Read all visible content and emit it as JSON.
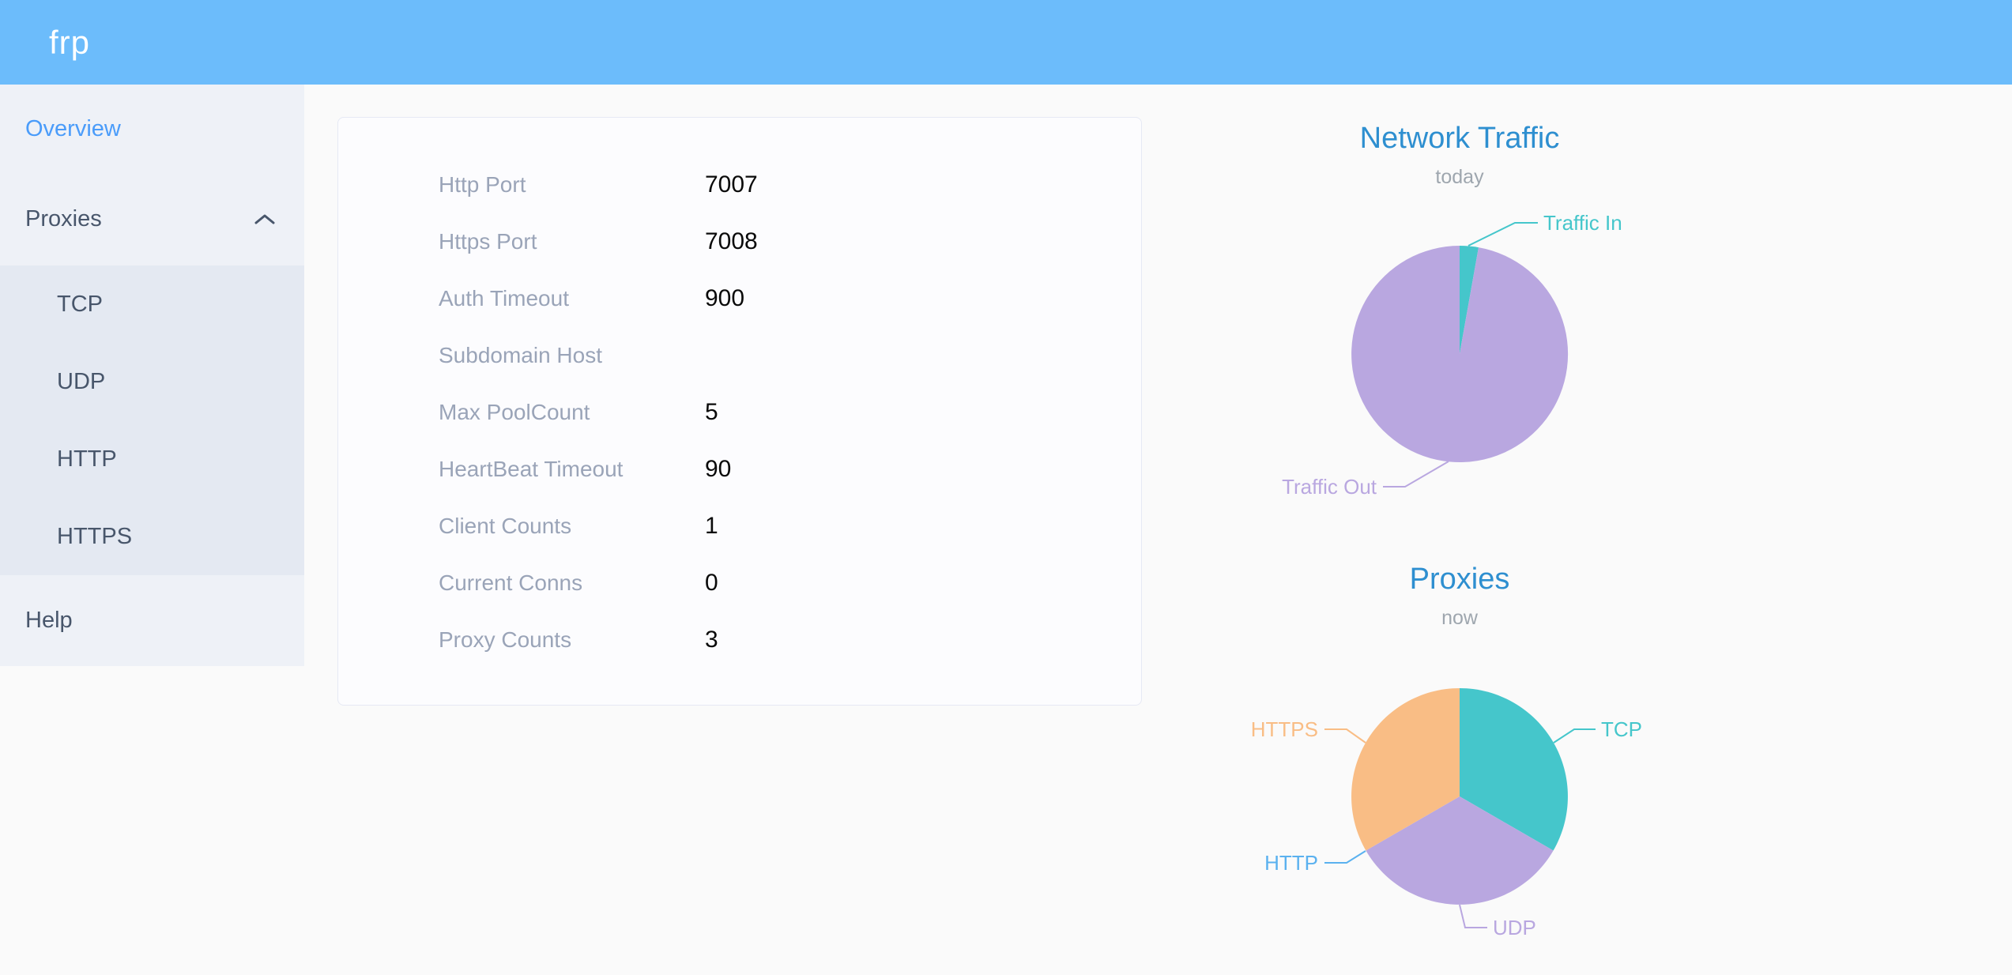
{
  "app": {
    "logo": "frp"
  },
  "colors": {
    "header_bg": "#6cbcfb",
    "sidebar_bg": "#eef1f7",
    "submenu_bg": "#e4e9f2",
    "sidebar_text": "#48566b",
    "active_item": "#4a9cfa",
    "card_label": "#9aa4b8",
    "chart_title_blue": "#2e8fd0",
    "teal": "#45c6cb",
    "purple": "#b9a7e0",
    "orange": "#f9bd85",
    "http_blue": "#5ab1ef"
  },
  "sidebar": {
    "items": [
      {
        "label": "Overview",
        "active": true
      },
      {
        "label": "Proxies",
        "expanded": true,
        "children": [
          "TCP",
          "UDP",
          "HTTP",
          "HTTPS"
        ]
      },
      {
        "label": "Help"
      }
    ]
  },
  "server_info": {
    "rows": [
      {
        "label": "Http Port",
        "value": "7007"
      },
      {
        "label": "Https Port",
        "value": "7008"
      },
      {
        "label": "Auth Timeout",
        "value": "900"
      },
      {
        "label": "Subdomain Host",
        "value": ""
      },
      {
        "label": "Max PoolCount",
        "value": "5"
      },
      {
        "label": "HeartBeat Timeout",
        "value": "90"
      },
      {
        "label": "Client Counts",
        "value": "1"
      },
      {
        "label": "Current Conns",
        "value": "0"
      },
      {
        "label": "Proxy Counts",
        "value": "3"
      }
    ]
  },
  "chart_data": [
    {
      "type": "pie",
      "title": "Network Traffic",
      "subtitle": "today",
      "legend_position": "callout-labels",
      "units": "percent of today's traffic (estimated from slice angles)",
      "series": [
        {
          "name": "Traffic In",
          "value": 2.8,
          "color": "#45c6cb"
        },
        {
          "name": "Traffic Out",
          "value": 97.2,
          "color": "#b9a7e0"
        }
      ]
    },
    {
      "type": "pie",
      "title": "Proxies",
      "subtitle": "now",
      "legend_position": "callout-labels",
      "units": "proxy counts",
      "total": 3,
      "series": [
        {
          "name": "TCP",
          "value": 1,
          "color": "#45c6cb"
        },
        {
          "name": "UDP",
          "value": 1,
          "color": "#b9a7e0"
        },
        {
          "name": "HTTP",
          "value": 0,
          "color": "#5ab1ef"
        },
        {
          "name": "HTTPS",
          "value": 1,
          "color": "#f9bd85"
        }
      ]
    }
  ]
}
